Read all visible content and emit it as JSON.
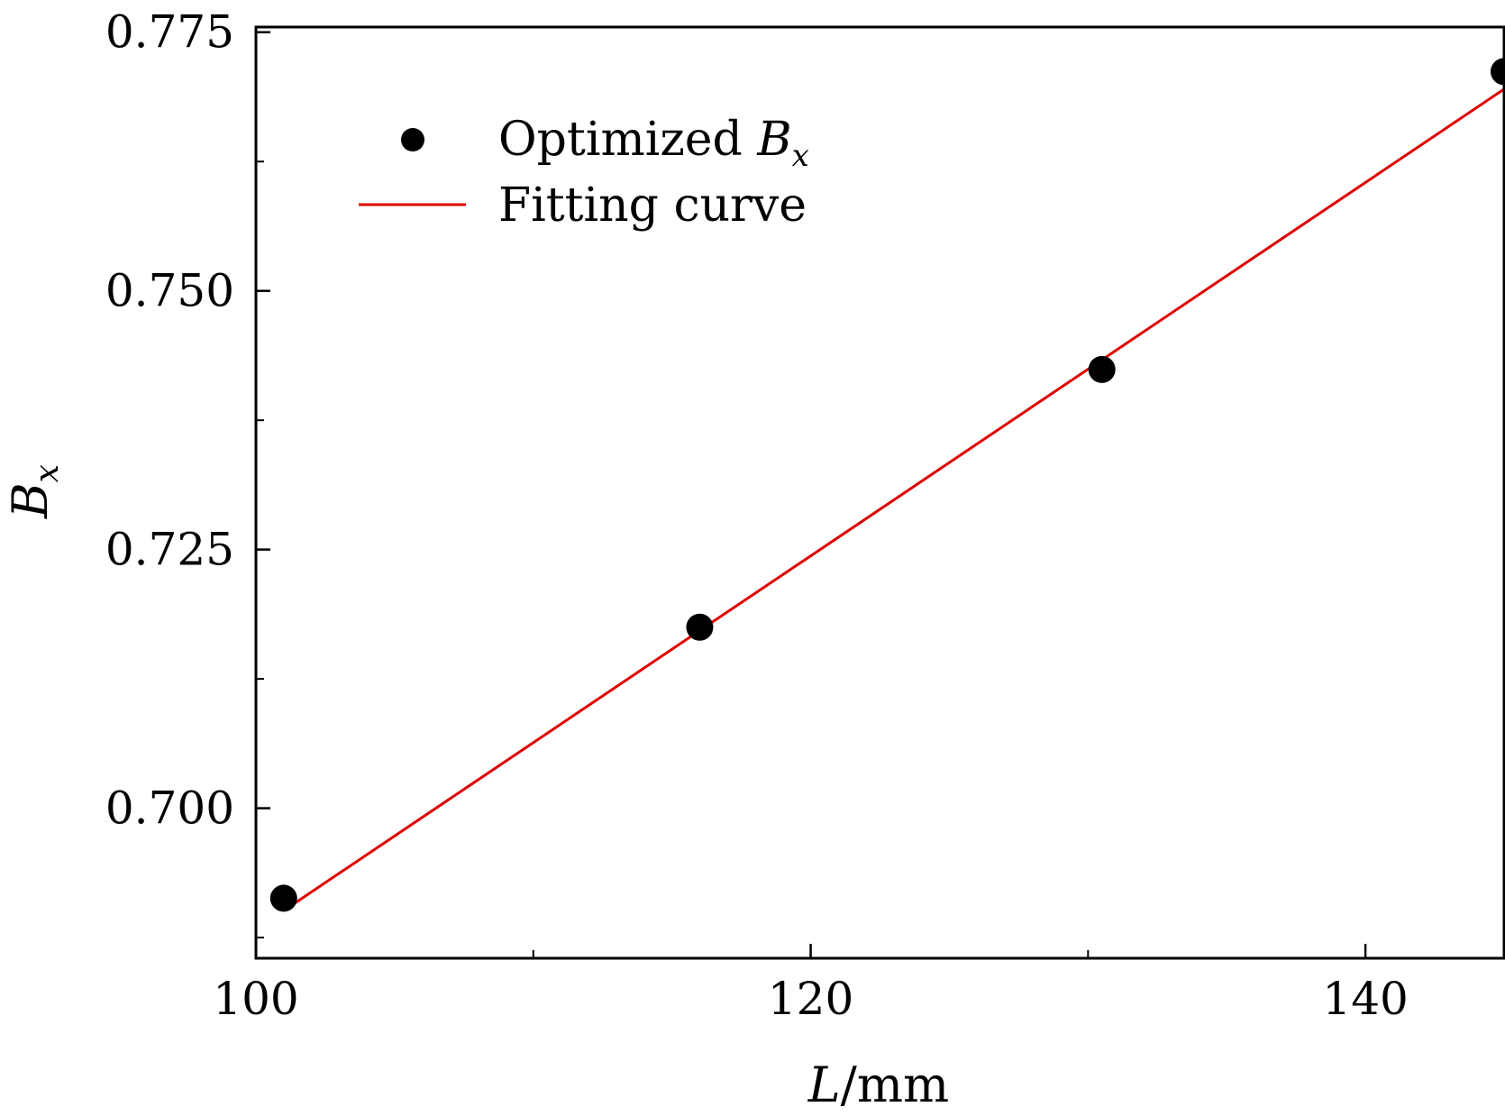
{
  "chart_data": {
    "type": "scatter",
    "xlim": [
      100,
      145
    ],
    "ylim": [
      0.6855,
      0.7755
    ],
    "x_ticks": [
      {
        "value": 100,
        "label": "100"
      },
      {
        "value": 120,
        "label": "120"
      },
      {
        "value": 140,
        "label": "140"
      }
    ],
    "x_minor_ticks": [
      110,
      130
    ],
    "y_ticks": [
      {
        "value": 0.7,
        "label": "0.700"
      },
      {
        "value": 0.725,
        "label": "0.725"
      },
      {
        "value": 0.75,
        "label": "0.750"
      },
      {
        "value": 0.775,
        "label": "0.775"
      }
    ],
    "y_minor_ticks": [
      0.6875,
      0.7125,
      0.7375,
      0.7625
    ],
    "xlabel": {
      "italic": "L",
      "rest": "/mm"
    },
    "ylabel": {
      "main": "B",
      "sub": "x"
    },
    "legend": {
      "placement": "top-left",
      "entries": [
        {
          "kind": "marker",
          "text": "Optimized ",
          "italic_main": "B",
          "italic_sub": "x"
        },
        {
          "kind": "line",
          "text": "Fitting curve"
        }
      ]
    },
    "series": [
      {
        "name": "Optimized Bx",
        "kind": "scatter",
        "color": "#000000",
        "x": [
          101,
          116,
          130.5,
          145
        ],
        "y": [
          0.6913,
          0.7175,
          0.7424,
          0.7712
        ]
      },
      {
        "name": "Fitting curve",
        "kind": "line",
        "color": "#e00000",
        "x": [
          101,
          145
        ],
        "y": [
          0.6901,
          0.7695
        ]
      }
    ],
    "grid": false
  }
}
